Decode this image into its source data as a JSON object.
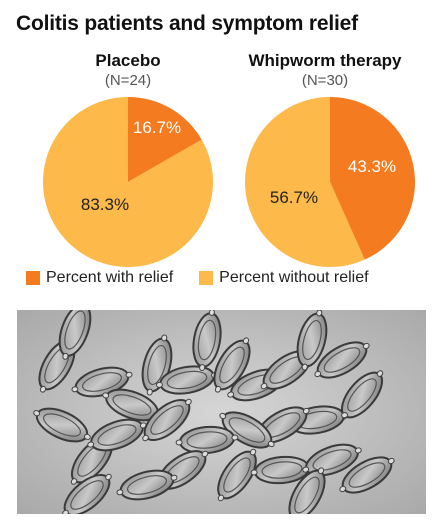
{
  "title": "Colitis patients and symptom relief",
  "colors": {
    "relief": "#f47b20",
    "no_relief": "#fdb94a",
    "text": "#111111"
  },
  "chart_data": [
    {
      "type": "pie",
      "title": "Placebo",
      "subtitle": "(N=24)",
      "slices": [
        {
          "label": "Percent with relief",
          "value": 16.7,
          "display": "16.7%"
        },
        {
          "label": "Percent without relief",
          "value": 83.3,
          "display": "83.3%"
        }
      ]
    },
    {
      "type": "pie",
      "title": "Whipworm therapy",
      "subtitle": "(N=30)",
      "slices": [
        {
          "label": "Percent with relief",
          "value": 43.3,
          "display": "43.3%"
        },
        {
          "label": "Percent without relief",
          "value": 56.7,
          "display": "56.7%"
        }
      ]
    }
  ],
  "legend": [
    {
      "label": "Percent with relief",
      "color": "#f47b20"
    },
    {
      "label": "Percent without relief",
      "color": "#fdb94a"
    }
  ],
  "photo": {
    "subject": "whipworm eggs micrograph"
  }
}
